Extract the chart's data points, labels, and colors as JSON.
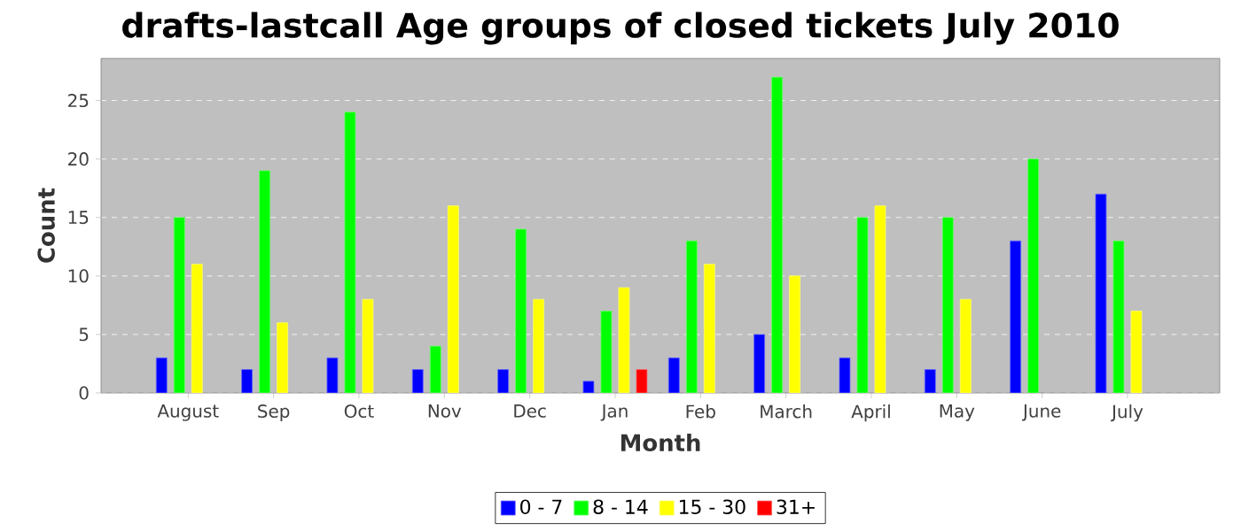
{
  "chart_data": {
    "type": "bar",
    "title": "drafts-lastcall Age groups of closed tickets July 2010",
    "xlabel": "Month",
    "ylabel": "Count",
    "categories": [
      "August",
      "Sep",
      "Oct",
      "Nov",
      "Dec",
      "Jan",
      "Feb",
      "March",
      "April",
      "May",
      "June",
      "July"
    ],
    "series": [
      {
        "name": "0 - 7",
        "color": "#0000ff",
        "values": [
          3,
          2,
          3,
          2,
          2,
          1,
          3,
          5,
          3,
          2,
          13,
          17
        ]
      },
      {
        "name": "8 - 14",
        "color": "#00ff00",
        "values": [
          15,
          19,
          24,
          4,
          14,
          7,
          13,
          27,
          15,
          15,
          20,
          13
        ]
      },
      {
        "name": "15 - 30",
        "color": "#ffff00",
        "values": [
          11,
          6,
          8,
          16,
          8,
          9,
          11,
          10,
          16,
          8,
          null,
          7
        ]
      },
      {
        "name": "31+",
        "color": "#ff0000",
        "values": [
          null,
          null,
          null,
          null,
          null,
          2,
          null,
          null,
          null,
          null,
          null,
          null
        ]
      }
    ],
    "ylim": [
      0,
      28.6
    ],
    "yticks": [
      0,
      5,
      10,
      15,
      20,
      25
    ],
    "grid": "y",
    "legend": "bottom"
  }
}
